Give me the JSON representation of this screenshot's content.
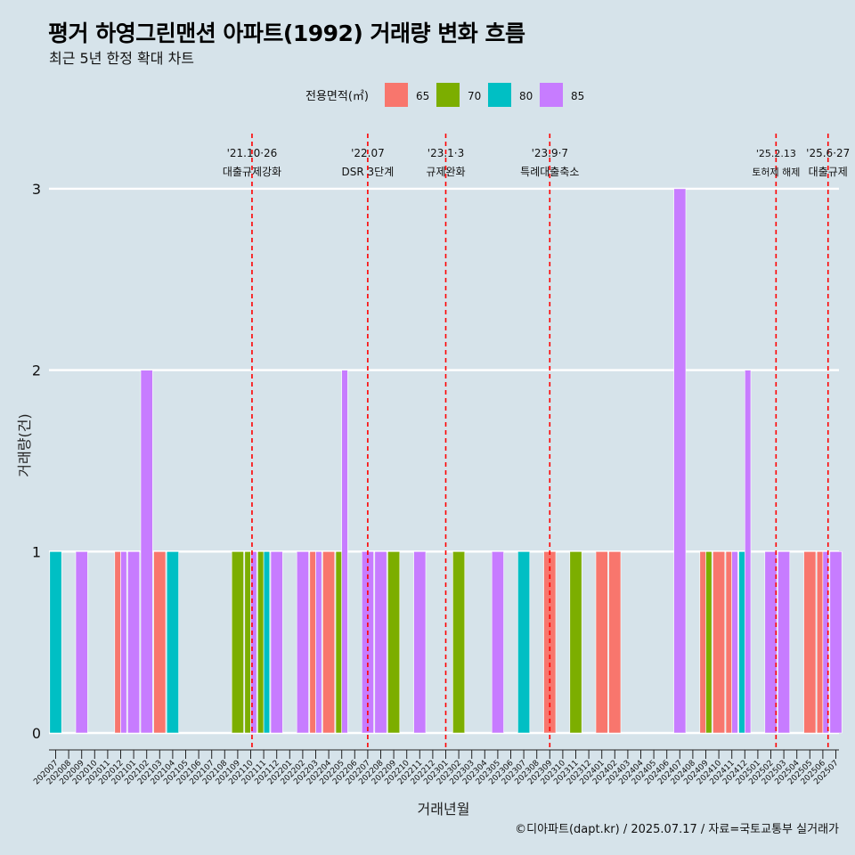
{
  "chart_data": {
    "type": "bar",
    "title": "평거 하영그린맨션 아파트(1992) 거래량 변화 흐름",
    "subtitle": "최근 5년 한정 확대 차트",
    "xlabel": "거래년월",
    "ylabel": "거래량(건)",
    "caption": "©디아파트(dapt.kr) / 2025.07.17 / 자료=국토교통부 실거래가",
    "ylim": [
      0,
      3
    ],
    "yticks": [
      0,
      1,
      2,
      3
    ],
    "grid": true,
    "legend": {
      "title": "전용면적(㎡)",
      "position": "top",
      "entries": [
        {
          "label": "65",
          "color": "#F8766D"
        },
        {
          "label": "70",
          "color": "#7CAE00"
        },
        {
          "label": "80",
          "color": "#00BFC4"
        },
        {
          "label": "85",
          "color": "#C77CFF"
        }
      ]
    },
    "categories": [
      "202007",
      "202008",
      "202009",
      "202010",
      "202011",
      "202012",
      "202101",
      "202102",
      "202103",
      "202104",
      "202105",
      "202106",
      "202107",
      "202108",
      "202109",
      "202110",
      "202111",
      "202112",
      "202201",
      "202202",
      "202203",
      "202204",
      "202205",
      "202206",
      "202207",
      "202208",
      "202209",
      "202210",
      "202211",
      "202212",
      "202301",
      "202302",
      "202303",
      "202304",
      "202305",
      "202306",
      "202307",
      "202308",
      "202309",
      "202310",
      "202311",
      "202312",
      "202401",
      "202402",
      "202403",
      "202404",
      "202405",
      "202406",
      "202407",
      "202408",
      "202409",
      "202410",
      "202411",
      "202412",
      "202501",
      "202502",
      "202503",
      "202504",
      "202505",
      "202506",
      "202507"
    ],
    "bars": [
      {
        "x": "202007",
        "groups": [
          {
            "area": "80",
            "value": 1
          }
        ]
      },
      {
        "x": "202009",
        "groups": [
          {
            "area": "85",
            "value": 1
          }
        ]
      },
      {
        "x": "202012",
        "groups": [
          {
            "area": "65",
            "value": 1
          },
          {
            "area": "85",
            "value": 1
          }
        ]
      },
      {
        "x": "202101",
        "groups": [
          {
            "area": "85",
            "value": 1
          }
        ]
      },
      {
        "x": "202102",
        "groups": [
          {
            "area": "85",
            "value": 2
          }
        ]
      },
      {
        "x": "202103",
        "groups": [
          {
            "area": "65",
            "value": 1
          }
        ]
      },
      {
        "x": "202104",
        "groups": [
          {
            "area": "80",
            "value": 1
          }
        ]
      },
      {
        "x": "202109",
        "groups": [
          {
            "area": "70",
            "value": 1
          }
        ]
      },
      {
        "x": "202110",
        "groups": [
          {
            "area": "70",
            "value": 1
          },
          {
            "area": "85",
            "value": 1
          }
        ]
      },
      {
        "x": "202111",
        "groups": [
          {
            "area": "70",
            "value": 1
          },
          {
            "area": "80",
            "value": 1
          }
        ]
      },
      {
        "x": "202112",
        "groups": [
          {
            "area": "85",
            "value": 1
          }
        ]
      },
      {
        "x": "202202",
        "groups": [
          {
            "area": "85",
            "value": 1
          }
        ]
      },
      {
        "x": "202203",
        "groups": [
          {
            "area": "65",
            "value": 1
          },
          {
            "area": "85",
            "value": 1
          }
        ]
      },
      {
        "x": "202204",
        "groups": [
          {
            "area": "65",
            "value": 1
          }
        ]
      },
      {
        "x": "202205",
        "groups": [
          {
            "area": "70",
            "value": 1
          },
          {
            "area": "85",
            "value": 2
          }
        ]
      },
      {
        "x": "202207",
        "groups": [
          {
            "area": "85",
            "value": 1
          }
        ]
      },
      {
        "x": "202208",
        "groups": [
          {
            "area": "85",
            "value": 1
          }
        ]
      },
      {
        "x": "202209",
        "groups": [
          {
            "area": "70",
            "value": 1
          }
        ]
      },
      {
        "x": "202211",
        "groups": [
          {
            "area": "85",
            "value": 1
          }
        ]
      },
      {
        "x": "202302",
        "groups": [
          {
            "area": "70",
            "value": 1
          }
        ]
      },
      {
        "x": "202305",
        "groups": [
          {
            "area": "85",
            "value": 1
          }
        ]
      },
      {
        "x": "202307",
        "groups": [
          {
            "area": "80",
            "value": 1
          }
        ]
      },
      {
        "x": "202309",
        "groups": [
          {
            "area": "65",
            "value": 1
          }
        ]
      },
      {
        "x": "202311",
        "groups": [
          {
            "area": "70",
            "value": 1
          }
        ]
      },
      {
        "x": "202401",
        "groups": [
          {
            "area": "65",
            "value": 1
          }
        ]
      },
      {
        "x": "202402",
        "groups": [
          {
            "area": "65",
            "value": 1
          }
        ]
      },
      {
        "x": "202407",
        "groups": [
          {
            "area": "85",
            "value": 3
          }
        ]
      },
      {
        "x": "202409",
        "groups": [
          {
            "area": "65",
            "value": 1
          },
          {
            "area": "70",
            "value": 1
          }
        ]
      },
      {
        "x": "202410",
        "groups": [
          {
            "area": "65",
            "value": 1
          }
        ]
      },
      {
        "x": "202411",
        "groups": [
          {
            "area": "65",
            "value": 1
          },
          {
            "area": "85",
            "value": 1
          }
        ]
      },
      {
        "x": "202412",
        "groups": [
          {
            "area": "80",
            "value": 1
          },
          {
            "area": "85",
            "value": 2
          }
        ]
      },
      {
        "x": "202502",
        "groups": [
          {
            "area": "85",
            "value": 1
          }
        ]
      },
      {
        "x": "202503",
        "groups": [
          {
            "area": "85",
            "value": 1
          }
        ]
      },
      {
        "x": "202505",
        "groups": [
          {
            "area": "65",
            "value": 1
          }
        ]
      },
      {
        "x": "202506",
        "groups": [
          {
            "area": "65",
            "value": 1
          },
          {
            "area": "85",
            "value": 1
          }
        ]
      },
      {
        "x": "202507",
        "groups": [
          {
            "area": "85",
            "value": 1
          }
        ]
      }
    ],
    "annotations": [
      {
        "x": 15.1,
        "date": "'21.10·26",
        "label": "대출규제강화",
        "line_style": "dashed",
        "color": "#ff0000"
      },
      {
        "x": 24,
        "date": "'22.07",
        "label": "DSR 3단계",
        "line_style": "dashed",
        "color": "#ff0000"
      },
      {
        "x": 30,
        "date": "'23.1·3",
        "label": "규제완화",
        "line_style": "dashed",
        "color": "#ff0000"
      },
      {
        "x": 38,
        "date": "'23.9·7",
        "label": "특례대출축소",
        "line_style": "dashed",
        "color": "#ff0000"
      },
      {
        "x": 55.4,
        "date": "'25.2.13",
        "label": "토허제 해제",
        "line_style": "dashed",
        "color": "#ff0000"
      },
      {
        "x": 59.4,
        "date": "'25.6·27",
        "label": "대출규제",
        "line_style": "dashed",
        "color": "#ff0000"
      }
    ]
  }
}
